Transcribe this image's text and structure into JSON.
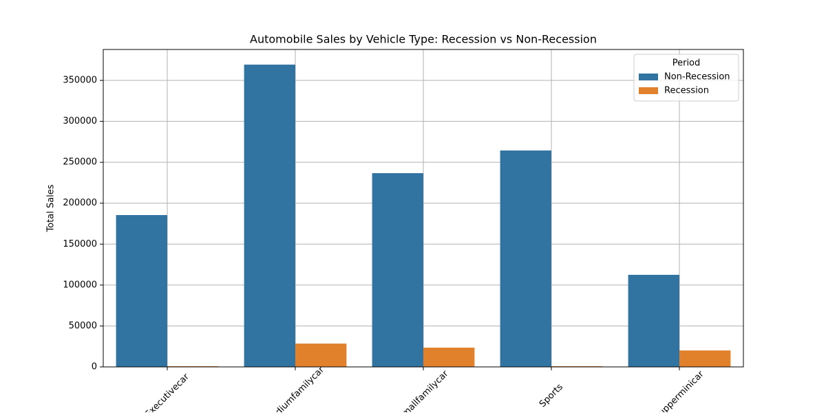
{
  "chart_data": {
    "type": "bar",
    "title": "Automobile Sales by Vehicle Type: Recession vs Non-Recession",
    "y_label": "Total Sales",
    "categories": [
      "Executivecar",
      "Mediumfamilycar",
      "Smallfamilycar",
      "Sports",
      "Supperminicar"
    ],
    "series": [
      {
        "name": "Non-Recession",
        "color": "#3274a1",
        "values": [
          185500,
          369300,
          236700,
          264400,
          112500
        ]
      },
      {
        "name": "Recession",
        "color": "#e1812c",
        "values": [
          800,
          28500,
          23500,
          800,
          20100
        ]
      }
    ],
    "legend_title": "Period",
    "legend": "upper right",
    "ylim": [
      0,
      387800
    ],
    "yticks": [
      0,
      50000,
      100000,
      150000,
      200000,
      250000,
      300000,
      350000
    ],
    "grid": true
  }
}
